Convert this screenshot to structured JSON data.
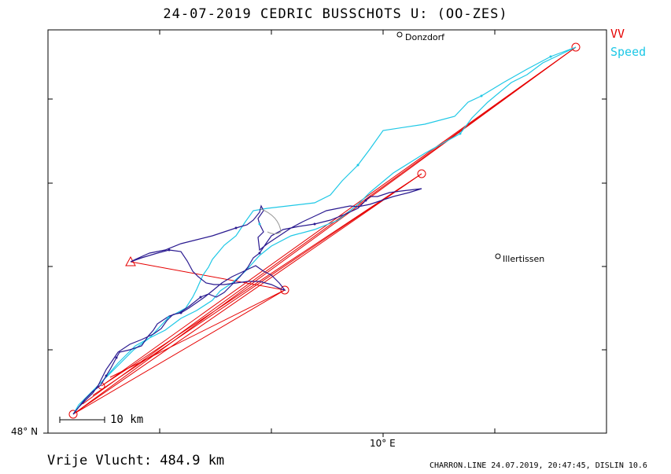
{
  "title": "24-07-2019    CEDRIC  BUSSCHOTS    U: (OO-ZES)",
  "legend": {
    "vv": "VV",
    "speed": "Speed",
    "vv_color": "#e60000",
    "speed_color": "#1ec8e6",
    "track_color": "#2a1a90"
  },
  "axes": {
    "lat_label": "48° N",
    "lon_label": "10° E"
  },
  "scale": {
    "label": "10 km"
  },
  "towns": {
    "donzdorf": "Donzdorf",
    "illertissen": "Illertissen"
  },
  "footer": {
    "distance": "Vrije Vlucht:  484.9 km",
    "info": "CHARRON.LINE 24.07.2019, 20:47:45, DISLIN 10.6"
  }
}
